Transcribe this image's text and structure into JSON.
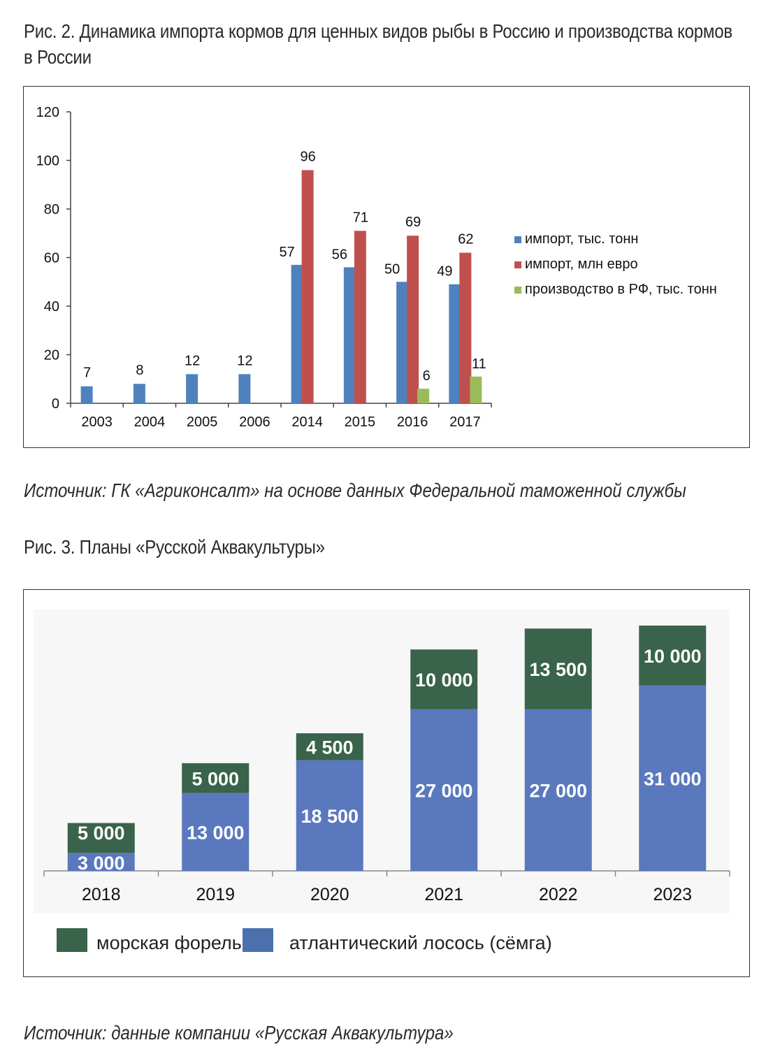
{
  "figure2": {
    "caption": "Рис. 2. Динамика импорта кормов для ценных видов рыбы в Россию и производства кормов в России",
    "source": "Источник: ГК «Агриконсалт» на основе данных Федеральной таможенной службы"
  },
  "figure3": {
    "caption": "Рис. 3. Планы «Русской Аквакультуры»",
    "source": "Источник: данные компании «Русская Аквакультура»"
  },
  "chart_data": [
    {
      "type": "bar",
      "categories": [
        "2003",
        "2004",
        "2005",
        "2006",
        "2014",
        "2015",
        "2016",
        "2017"
      ],
      "series": [
        {
          "name": "импорт, тыс. тонн",
          "color": "#4f81bd",
          "values": [
            7,
            8,
            12,
            12,
            57,
            56,
            50,
            49
          ]
        },
        {
          "name": "импорт, млн евро",
          "color": "#c0504d",
          "values": [
            null,
            null,
            null,
            null,
            96,
            71,
            69,
            62
          ]
        },
        {
          "name": "производство в РФ, тыс. тонн",
          "color": "#9bbb59",
          "values": [
            null,
            null,
            null,
            null,
            null,
            null,
            6,
            11
          ]
        }
      ],
      "yticks": [
        "0",
        "20",
        "40",
        "60",
        "80",
        "100",
        "120"
      ],
      "ylim": [
        0,
        120
      ],
      "legend_position": "right"
    },
    {
      "type": "bar",
      "stacked": true,
      "categories": [
        "2018",
        "2019",
        "2020",
        "2021",
        "2022",
        "2023"
      ],
      "series": [
        {
          "name": "атлантический лосось (сёмга)",
          "color": "#5a78bd",
          "values": [
            3000,
            13000,
            18500,
            27000,
            27000,
            31000
          ],
          "labels": [
            "3 000",
            "13 000",
            "18 500",
            "27 000",
            "27 000",
            "31 000"
          ]
        },
        {
          "name": "морская форель",
          "color": "#39634a",
          "values": [
            5000,
            5000,
            4500,
            10000,
            13500,
            10000
          ],
          "labels": [
            "5 000",
            "5 000",
            "4 500",
            "10 000",
            "13 500",
            "10 000"
          ]
        }
      ],
      "legend_position": "bottom"
    }
  ]
}
